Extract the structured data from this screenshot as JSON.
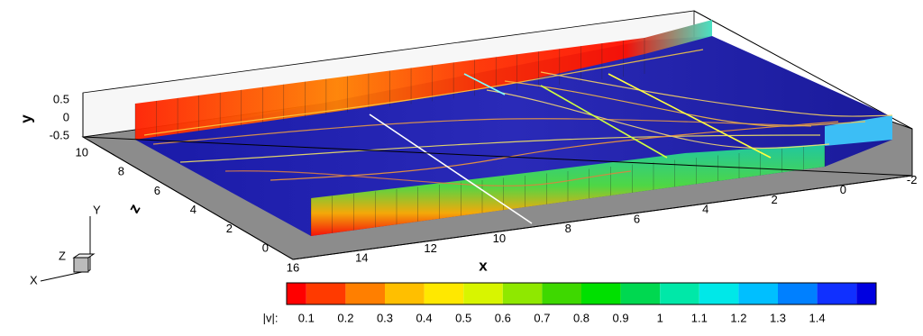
{
  "axes": {
    "y": {
      "label": "y",
      "ticks": [
        "0.5",
        "0",
        "-0.5"
      ]
    },
    "z": {
      "label": "z",
      "ticks": [
        "10",
        "8",
        "6",
        "4",
        "2",
        "0"
      ]
    },
    "x": {
      "label": "x",
      "ticks": [
        "16",
        "14",
        "12",
        "10",
        "8",
        "6",
        "4",
        "2",
        "0",
        "-2"
      ]
    }
  },
  "triad": {
    "y": "Y",
    "z": "Z",
    "x": "X"
  },
  "colorbar": {
    "label": "|v|:",
    "ticks": [
      "0.1",
      "0.2",
      "0.3",
      "0.4",
      "0.5",
      "0.6",
      "0.7",
      "0.8",
      "0.9",
      "1",
      "1.1",
      "1.2",
      "1.3",
      "1.4"
    ],
    "colors": [
      "#ff0000",
      "#ff3a00",
      "#ff7f00",
      "#ffbf00",
      "#ffe800",
      "#d8f500",
      "#8fe800",
      "#3ed800",
      "#00e000",
      "#00d850",
      "#00e8a8",
      "#00e8e8",
      "#00bfff",
      "#0080ff",
      "#1030ff",
      "#0000e0"
    ]
  }
}
